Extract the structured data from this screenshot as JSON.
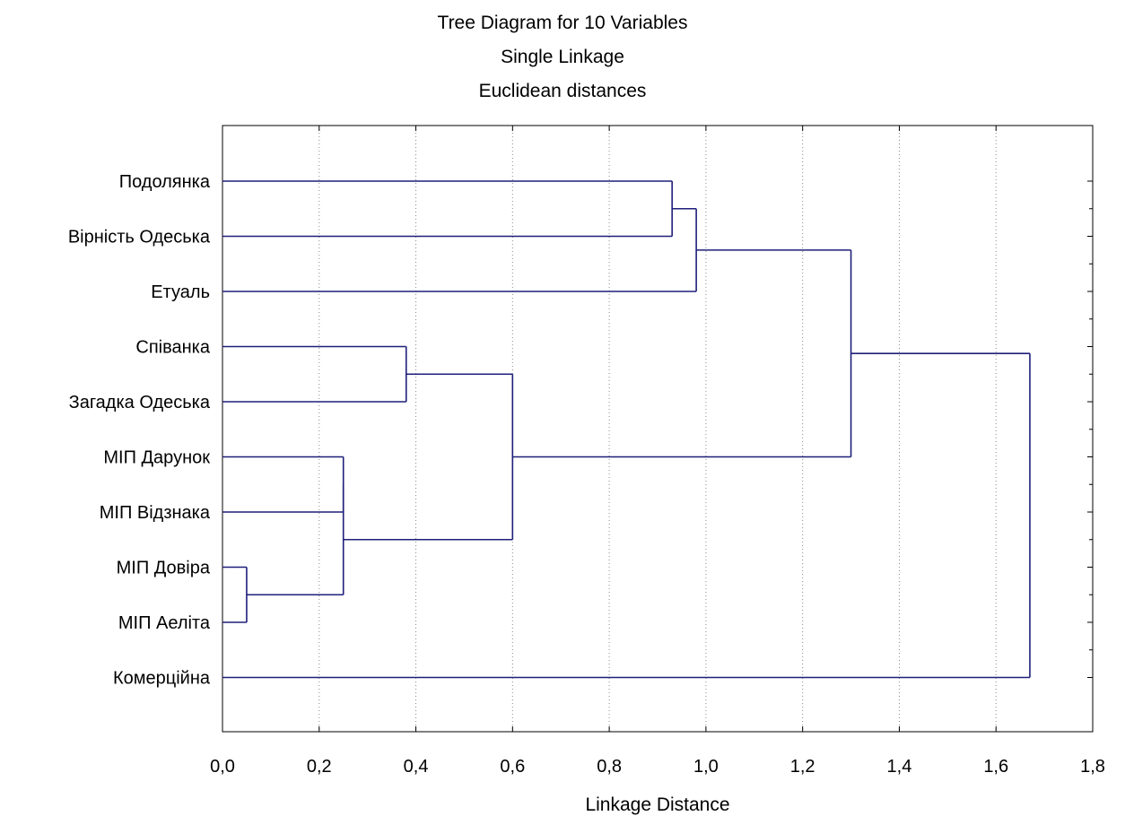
{
  "chart_data": {
    "type": "dendrogram",
    "title": "Tree Diagram for 10  Variables",
    "subtitle": [
      "Single Linkage",
      "Euclidean distances"
    ],
    "xlabel": "Linkage Distance",
    "ylabel": "",
    "xlim": [
      0,
      1.8
    ],
    "xticks": [
      "0,0",
      "0,2",
      "0,4",
      "0,6",
      "0,8",
      "1,0",
      "1,2",
      "1,4",
      "1,6",
      "1,8"
    ],
    "grid": "vertical dotted",
    "leaves": [
      "Подолянка",
      "Вірність Одеська",
      "Етуаль",
      "Співанка",
      "Загадка Одеська",
      "МІП Дарунок",
      "МІП Відзнака",
      "МІП Довіра",
      "МІП Аеліта",
      "Комерційна"
    ],
    "merges": [
      {
        "a": "МІП Довіра",
        "b": "МІП Аеліта",
        "distance": 0.05
      },
      {
        "a": "МІП Дарунок",
        "b": "МІП Відзнака",
        "distance": 0.25
      },
      {
        "a": "МІП Дарунок",
        "b": "МІП Довіра",
        "distance": 0.25
      },
      {
        "a": "Співанка",
        "b": "Загадка Одеська",
        "distance": 0.38
      },
      {
        "a": "Співанка",
        "b": "МІП Дарунок",
        "distance": 0.6
      },
      {
        "a": "Подолянка",
        "b": "Вірність Одеська",
        "distance": 0.93
      },
      {
        "a": "Подолянка",
        "b": "Етуаль",
        "distance": 0.98
      },
      {
        "a": "Подолянка",
        "b": "Співанка",
        "distance": 1.3
      },
      {
        "a": "Подолянка",
        "b": "Комерційна",
        "distance": 1.67
      }
    ],
    "line_color": "#1f1f7a",
    "frame_color": "#000000"
  }
}
